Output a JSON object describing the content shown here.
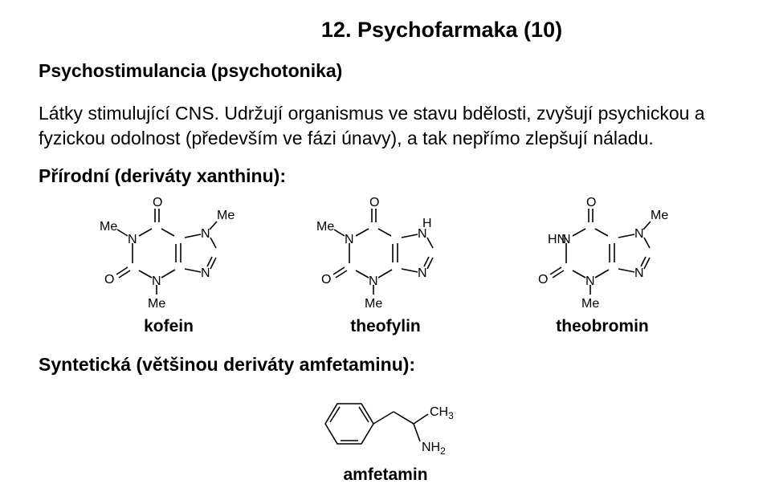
{
  "title": "12. Psychofarmaka (10)",
  "subheading": "Psychostimulancia (psychotonika)",
  "paragraph": "Látky stimulující CNS. Udržují organismus ve stavu bdělosti, zvyšují psychickou a fyzickou odolnost (především ve fázi únavy), a tak nepřímo zlepšují náladu.",
  "natural_heading": "Přírodní (deriváty xanthinu):",
  "synthetic_heading": "Syntetická (většinou deriváty amfetaminu):",
  "colors": {
    "text": "#000000",
    "background": "#ffffff",
    "bond": "#000000"
  },
  "xanthines": [
    {
      "name": "kofein",
      "r1": "Me",
      "r3": "Me",
      "r7": "Me"
    },
    {
      "name": "theofylin",
      "r1": "Me",
      "r3": "Me",
      "r7": "H"
    },
    {
      "name": "theobromin",
      "r1": "H",
      "r3": "Me",
      "r7": "Me"
    }
  ],
  "amfetamin": {
    "label": "amfetamin",
    "sub_ch3": "CH",
    "sub_ch3_n": "3",
    "sub_nh2": "NH",
    "sub_nh2_n": "2"
  },
  "font": {
    "title_size": 27,
    "heading_size": 23,
    "body_size": 23,
    "mol_label_size": 21,
    "svg_atom_size": 16
  }
}
